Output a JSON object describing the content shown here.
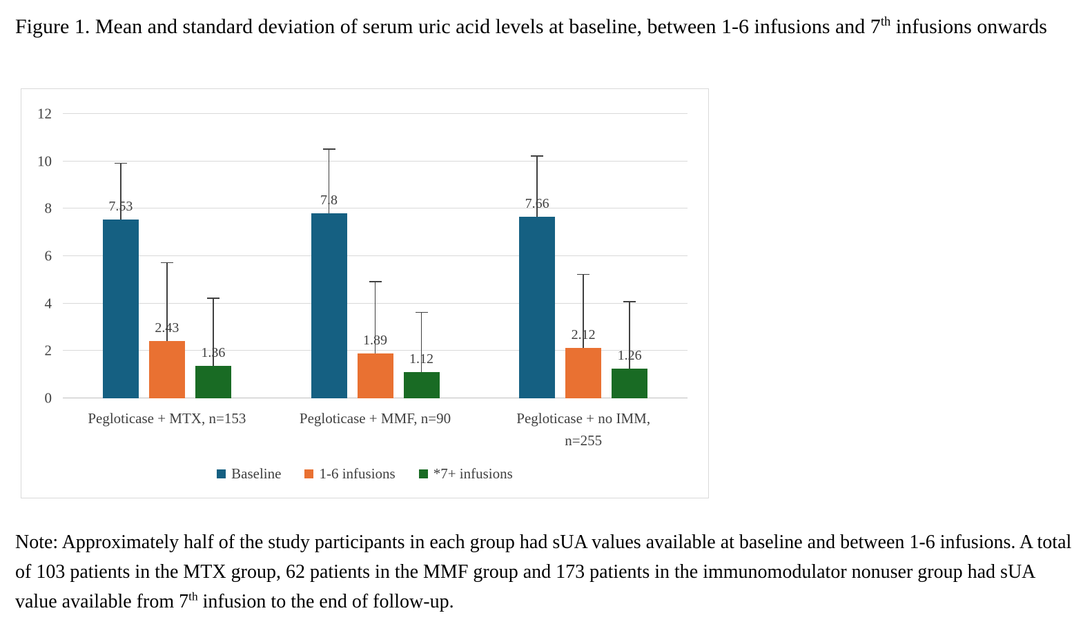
{
  "figure_title": {
    "before_sup": "Figure 1. Mean and standard deviation of serum uric acid levels at baseline, between 1-6 infusions and 7",
    "sup": "th",
    "after_sup": " infusions onwards"
  },
  "note": {
    "before_sup": "Note: Approximately half of the study participants in each group had sUA values available at baseline and between 1-6 infusions. A total of 103 patients in the MTX group, 62 patients in the MMF group and 173 patients in the immunomodulator nonuser group had sUA value available from 7",
    "sup": "th",
    "after_sup": " infusion to the end of follow-up."
  },
  "chart_data": {
    "type": "bar",
    "categories": [
      "Pegloticase + MTX, n=153",
      "Pegloticase + MMF, n=90",
      "Pegloticase + no IMM,\nn=255"
    ],
    "series": [
      {
        "name": "Baseline",
        "color": "#156082",
        "values": [
          7.53,
          7.8,
          7.66
        ],
        "error_bar_tops": [
          9.9,
          10.5,
          10.2
        ]
      },
      {
        "name": "1-6 infusions",
        "color": "#E97132",
        "values": [
          2.43,
          1.89,
          2.12
        ],
        "error_bar_tops": [
          5.7,
          4.9,
          5.2
        ]
      },
      {
        "name": "*7+ infusions",
        "color": "#196B24",
        "values": [
          1.36,
          1.12,
          1.26
        ],
        "error_bar_tops": [
          4.2,
          3.6,
          4.05
        ]
      }
    ],
    "ylim": [
      0,
      12
    ],
    "yticks": [
      0,
      2,
      4,
      6,
      8,
      10,
      12
    ],
    "grid": "horizontal",
    "legend_position": "bottom"
  },
  "chart_style": {
    "grid_color": "#D9D9D9",
    "axis_line_color": "#BFBFBF",
    "text_color": "#404040",
    "error_bar_color": "#404040",
    "border_color": "#D9D9D9",
    "background": "#FFFFFF"
  }
}
